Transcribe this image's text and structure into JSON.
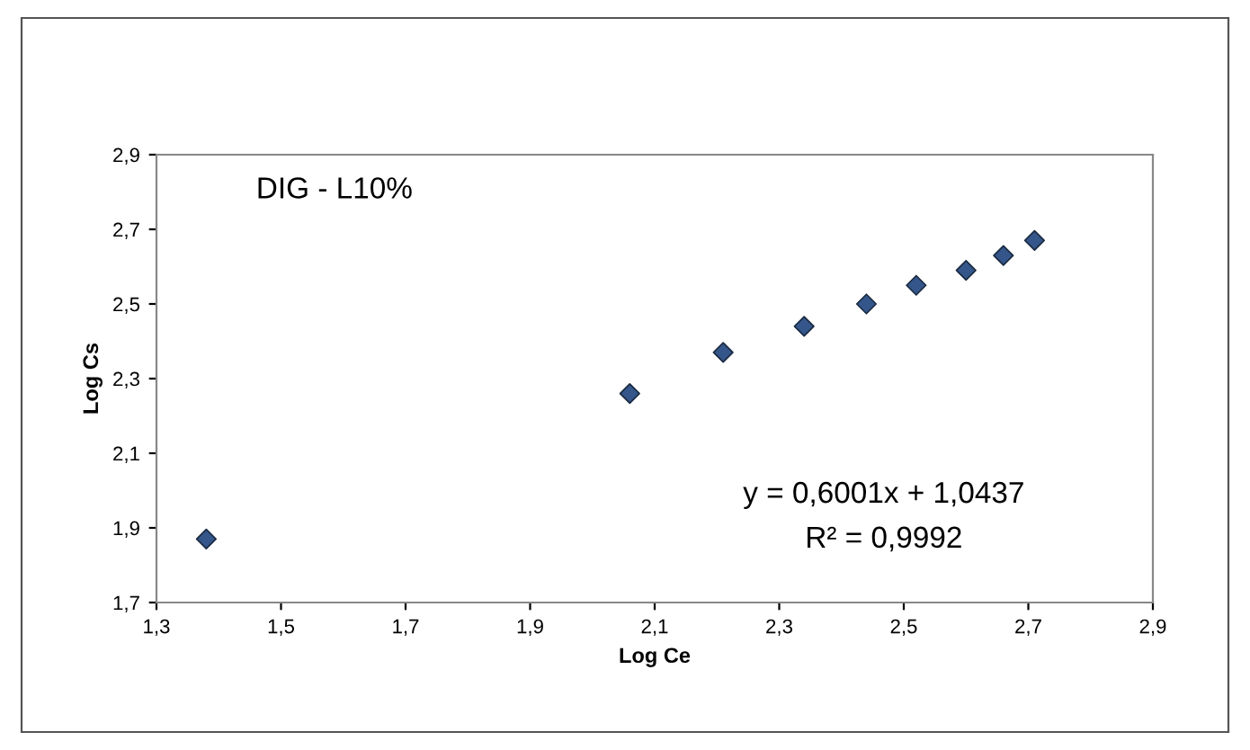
{
  "chart_data": {
    "type": "scatter",
    "xlabel": "Log Ce",
    "ylabel": "Log Cs",
    "annotations": [
      "DIG - L10%",
      "y = 0,6001x + 1,0437",
      "R² = 0,9992"
    ],
    "x": [
      1.38,
      2.06,
      2.21,
      2.34,
      2.44,
      2.52,
      2.6,
      2.66,
      2.71
    ],
    "series": [
      {
        "color": "#34568a",
        "values": [
          1.87,
          2.26,
          2.37,
          2.44,
          2.5,
          2.55,
          2.59,
          2.63,
          2.67
        ]
      }
    ],
    "marker": "diamond",
    "grid": false,
    "legend": false,
    "xlim": [
      1.3,
      2.9
    ],
    "xticks": [
      {
        "value": 1.3,
        "label": "1,3"
      },
      {
        "value": 1.5,
        "label": "1,5"
      },
      {
        "value": 1.7,
        "label": "1,7"
      },
      {
        "value": 1.9,
        "label": "1,9"
      },
      {
        "value": 2.1,
        "label": "2,1"
      },
      {
        "value": 2.3,
        "label": "2,3"
      },
      {
        "value": 2.5,
        "label": "2,5"
      },
      {
        "value": 2.7,
        "label": "2,7"
      },
      {
        "value": 2.9,
        "label": "2,9"
      }
    ],
    "ylim": [
      1.7,
      2.9
    ],
    "yticks": [
      {
        "value": 1.7,
        "label": "1,7"
      },
      {
        "value": 1.9,
        "label": "1,9"
      },
      {
        "value": 2.1,
        "label": "2,1"
      },
      {
        "value": 2.3,
        "label": "2,3"
      },
      {
        "value": 2.5,
        "label": "2,5"
      },
      {
        "value": 2.7,
        "label": "2,7"
      },
      {
        "value": 2.9,
        "label": "2,9"
      }
    ]
  }
}
